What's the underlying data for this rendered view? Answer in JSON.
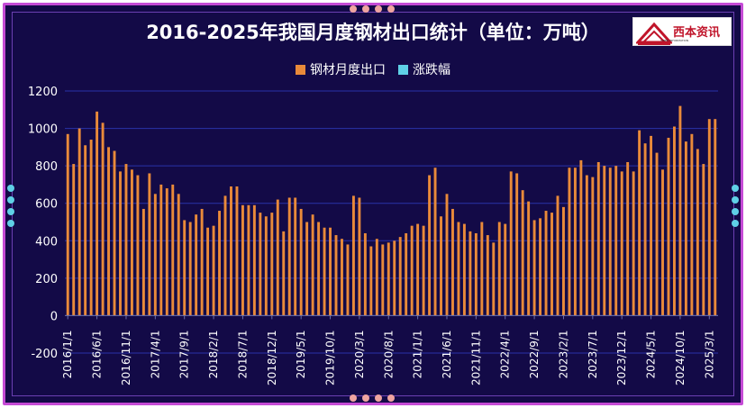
{
  "page": {
    "title": "2016-2025年我国月度钢材出口统计（单位：万吨）",
    "logo_text": "西本资讯",
    "logo_sub": "XIBEN INFORMATION"
  },
  "colors": {
    "background": "#130a47",
    "border": "#c54bd6",
    "grid": "#2a33a8",
    "bars": "#e98a3a",
    "change": "#5fd0e6",
    "text": "#ffffff"
  },
  "chart_data": {
    "type": "bar",
    "title": "2016-2025年我国月度钢材出口统计（单位：万吨）",
    "legend_position": "top",
    "grid": true,
    "ylim": [
      -200,
      1200
    ],
    "yticks": [
      "-200",
      "0",
      "200",
      "400",
      "600",
      "800",
      "1000",
      "1200"
    ],
    "xticks": [
      "2016/1/1",
      "2016/6/1",
      "2016/11/1",
      "2017/4/1",
      "2017/9/1",
      "2018/2/1",
      "2018/7/1",
      "2018/12/1",
      "2019/5/1",
      "2019/10/1",
      "2020/3/1",
      "2020/8/1",
      "2021/1/1",
      "2021/6/1",
      "2021/11/1",
      "2022/4/1",
      "2022/9/1",
      "2023/2/1",
      "2023/7/1",
      "2023/12/1",
      "2024/5/1",
      "2024/10/1",
      "2025/3/1"
    ],
    "series": [
      {
        "name": "钢材月度出口",
        "color": "#e98a3a",
        "start": "2016/1/1",
        "values": [
          970,
          810,
          1000,
          910,
          940,
          1090,
          1030,
          900,
          880,
          770,
          810,
          780,
          750,
          570,
          760,
          650,
          700,
          680,
          700,
          650,
          510,
          500,
          540,
          570,
          470,
          480,
          560,
          640,
          690,
          690,
          590,
          590,
          590,
          550,
          530,
          550,
          620,
          450,
          630,
          630,
          570,
          500,
          540,
          500,
          470,
          470,
          430,
          410,
          380,
          640,
          630,
          440,
          370,
          410,
          380,
          390,
          400,
          420,
          440,
          480,
          490,
          480,
          750,
          790,
          530,
          650,
          570,
          500,
          490,
          450,
          440,
          500,
          430,
          390,
          500,
          490,
          770,
          760,
          670,
          610,
          510,
          520,
          560,
          550,
          640,
          580,
          790,
          790,
          830,
          750,
          740,
          820,
          800,
          790,
          800,
          770,
          820,
          770,
          990,
          920,
          960,
          870,
          780,
          950,
          1010,
          1120,
          930,
          970,
          890,
          810,
          1050,
          1050
        ]
      },
      {
        "name": "涨跌幅",
        "color": "#5fd0e6",
        "values": []
      }
    ]
  }
}
